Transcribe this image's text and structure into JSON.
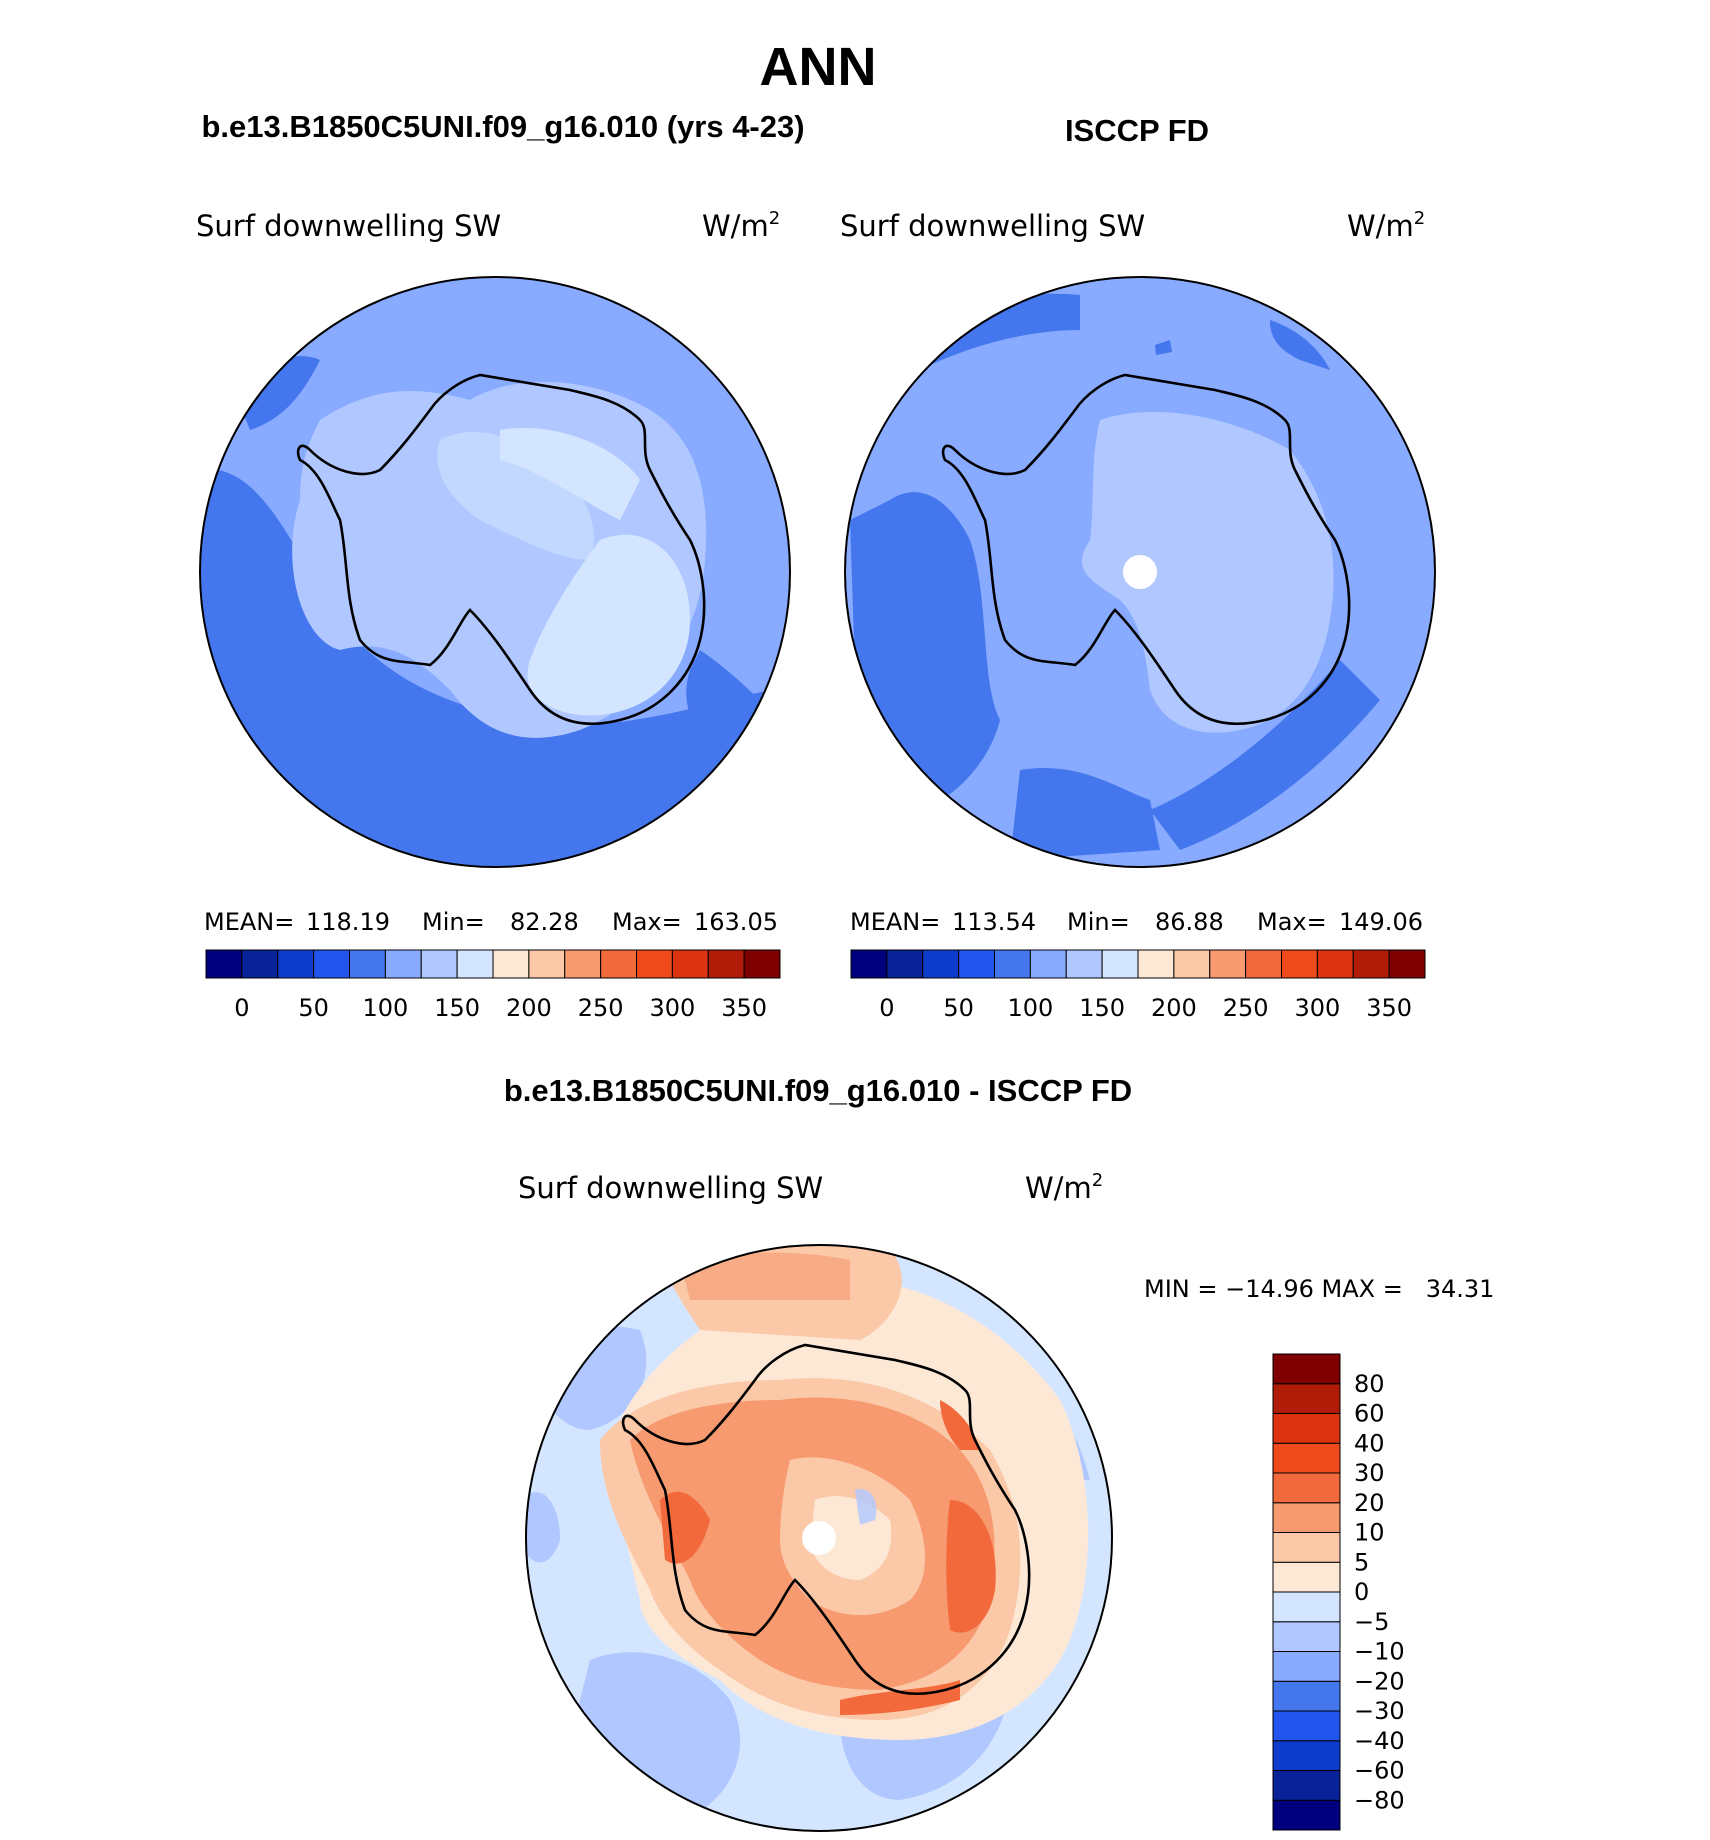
{
  "figure": {
    "title": "ANN"
  },
  "panels": [
    {
      "heading": "b.e13.B1850C5UNI.f09_g16.010 (yrs 4-23)",
      "variable": "Surf downwelling SW",
      "units_base": "W/m",
      "units_sup": "2",
      "stats": {
        "mean_label": "MEAN=",
        "mean": "118.19",
        "min_label": "Min=",
        "min": "82.28",
        "max_label": "Max=",
        "max": "163.05"
      }
    },
    {
      "heading": "ISCCP FD",
      "variable": "Surf downwelling SW",
      "units_base": "W/m",
      "units_sup": "2",
      "stats": {
        "mean_label": "MEAN=",
        "mean": "113.54",
        "min_label": "Min=",
        "min": "86.88",
        "max_label": "Max=",
        "max": "149.06"
      }
    },
    {
      "heading": "b.e13.B1850C5UNI.f09_g16.010 - ISCCP FD",
      "variable": "Surf downwelling SW",
      "units_base": "W/m",
      "units_sup": "2",
      "stats_line": "MIN = −14.96 MAX =   34.31"
    }
  ],
  "colorbar_abs": {
    "colors": [
      "#00007f",
      "#0a2299",
      "#0e3ccc",
      "#2255ee",
      "#4477ee",
      "#88aaff",
      "#b0c8ff",
      "#d4e6ff",
      "#fde8d6",
      "#fbc8a8",
      "#f79a70",
      "#f26a3c",
      "#ee4a1c",
      "#dd3311",
      "#b01c08",
      "#7f0000"
    ],
    "labels": [
      "0",
      "50",
      "100",
      "150",
      "200",
      "250",
      "300",
      "350"
    ]
  },
  "colorbar_diff": {
    "colors": [
      "#00007f",
      "#0a2299",
      "#0e3ccc",
      "#2255ee",
      "#4477ee",
      "#88aaff",
      "#b0c8ff",
      "#d4e6ff",
      "#fde8d6",
      "#fbc8a8",
      "#f79a70",
      "#f26a3c",
      "#ee4a1c",
      "#dd3311",
      "#b01c08",
      "#7f0000"
    ],
    "labels": [
      "−80",
      "−60",
      "−40",
      "−30",
      "−20",
      "−10",
      "−5",
      "0",
      "5",
      "10",
      "20",
      "30",
      "40",
      "60",
      "80"
    ]
  }
}
